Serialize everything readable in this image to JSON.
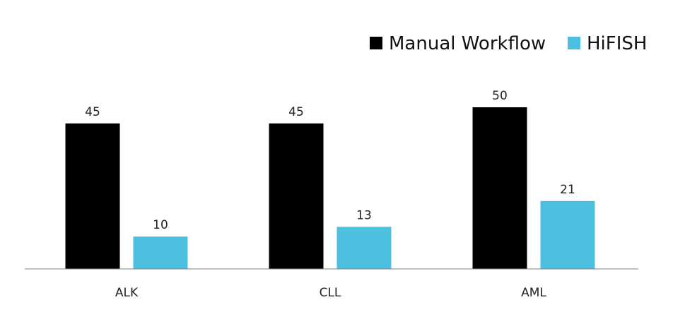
{
  "chart_data": {
    "type": "bar",
    "categories": [
      "ALK",
      "CLL",
      "AML"
    ],
    "series": [
      {
        "name": "Manual Workflow",
        "values": [
          45,
          45,
          50
        ],
        "color": "#000000"
      },
      {
        "name": "HiFISH",
        "values": [
          10,
          13,
          21
        ],
        "color": "#4dc0e0"
      }
    ],
    "data_labels": true,
    "legend_position": "top-right",
    "grid": false,
    "ylim": [
      0,
      60
    ]
  }
}
